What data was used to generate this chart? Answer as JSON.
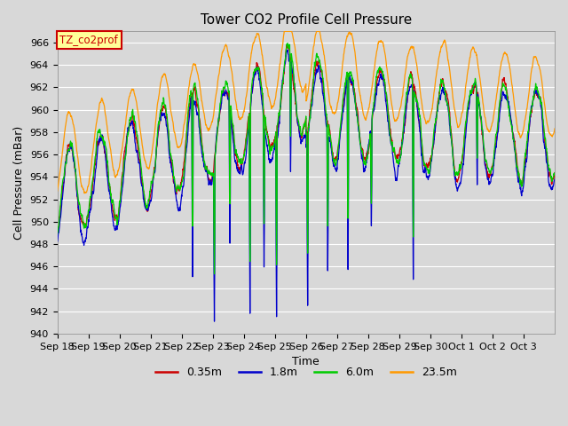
{
  "title": "Tower CO2 Profile Cell Pressure",
  "xlabel": "Time",
  "ylabel": "Cell Pressure (mBar)",
  "ylim": [
    940,
    967
  ],
  "yticks": [
    940,
    942,
    944,
    946,
    948,
    950,
    952,
    954,
    956,
    958,
    960,
    962,
    964,
    966
  ],
  "annotation_text": "TZ_co2prof",
  "annotation_color": "#cc0000",
  "annotation_bg": "#ffff99",
  "line_colors": {
    "0.35m": "#cc0000",
    "1.8m": "#0000cc",
    "6.0m": "#00cc00",
    "23.5m": "#ff9900"
  },
  "legend_labels": [
    "0.35m",
    "1.8m",
    "6.0m",
    "23.5m"
  ],
  "x_tick_labels": [
    "Sep 18",
    "Sep 19",
    "Sep 20",
    "Sep 21",
    "Sep 22",
    "Sep 23",
    "Sep 24",
    "Sep 25",
    "Sep 26",
    "Sep 27",
    "Sep 28",
    "Sep 29",
    "Sep 30",
    "Oct 1",
    "Oct 2",
    "Oct 3"
  ],
  "background_color": "#d8d8d8",
  "plot_bg": "#d8d8d8",
  "grid_color": "#ffffff",
  "figsize": [
    6.4,
    4.8
  ],
  "dpi": 100
}
